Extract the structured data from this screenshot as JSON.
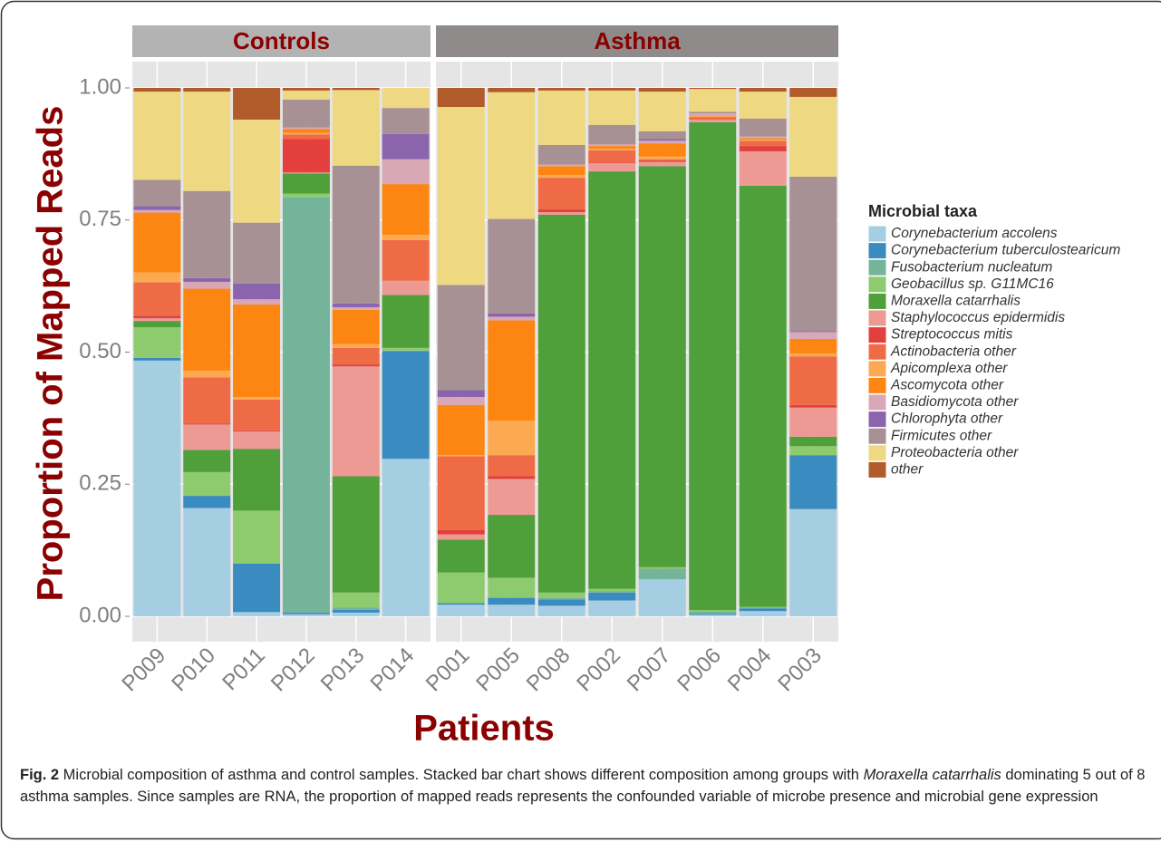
{
  "chart_data": {
    "type": "stacked_bar",
    "ylabel": "Proportion of Mapped Reads",
    "xlabel": "Patients",
    "legend_title": "Microbial taxa",
    "legend_position": "right",
    "groups": [
      {
        "label": "Controls",
        "categories": [
          "P009",
          "P010",
          "P011",
          "P012",
          "P013",
          "P014"
        ]
      },
      {
        "label": "Asthma",
        "categories": [
          "P001",
          "P005",
          "P008",
          "P002",
          "P007",
          "P006",
          "P004",
          "P003"
        ]
      }
    ],
    "ylim": [
      0,
      1
    ],
    "yticks": [
      {
        "value": 0,
        "label": "0.00"
      },
      {
        "value": 0.25,
        "label": "0.25"
      },
      {
        "value": 0.5,
        "label": "0.50"
      },
      {
        "value": 0.75,
        "label": "0.75"
      },
      {
        "value": 1,
        "label": "1.00"
      }
    ],
    "series": [
      {
        "name": "Corynebacterium accolens",
        "color": "#a6cee3",
        "values": [
          0.484,
          0.205,
          0.008,
          0.004,
          0.007,
          0.298,
          0.022,
          0.022,
          0.02,
          0.03,
          0.07,
          0.003,
          0.01,
          0.203
        ]
      },
      {
        "name": "Corynebacterium tuberculostearicum",
        "color": "#3a8bc0",
        "values": [
          0.005,
          0.023,
          0.092,
          0.003,
          0.005,
          0.204,
          0.003,
          0.013,
          0.012,
          0.015,
          0,
          0.002,
          0.005,
          0.102
        ]
      },
      {
        "name": "Fusobacterium nucleatum",
        "color": "#74b49b",
        "values": [
          0,
          0,
          0,
          0.786,
          0.005,
          0.001,
          0,
          0,
          0.003,
          0.003,
          0.02,
          0.005,
          0.002,
          0
        ]
      },
      {
        "name": "Geobacillus sp. G11MC16",
        "color": "#8dcb6e",
        "values": [
          0.058,
          0.045,
          0.1,
          0.007,
          0.028,
          0.005,
          0.058,
          0.038,
          0.01,
          0.004,
          0.003,
          0.002,
          0.001,
          0.017
        ]
      },
      {
        "name": "Moraxella catarrhalis",
        "color": "#4f9f3a",
        "values": [
          0.012,
          0.042,
          0.117,
          0.038,
          0.22,
          0.1,
          0.062,
          0.119,
          0.715,
          0.79,
          0.759,
          0.923,
          0.797,
          0.018
        ]
      },
      {
        "name": "Staphylococcus epidermidis",
        "color": "#ee9a94",
        "values": [
          0.005,
          0.048,
          0.033,
          0.002,
          0.208,
          0.027,
          0.01,
          0.068,
          0.005,
          0.016,
          0.008,
          0.005,
          0.065,
          0.055
        ]
      },
      {
        "name": "Streptococcus mitis",
        "color": "#e23f3d",
        "values": [
          0.005,
          0.002,
          0.002,
          0.063,
          0.003,
          0,
          0.008,
          0.005,
          0.005,
          0.002,
          0.002,
          0,
          0.01,
          0.005
        ]
      },
      {
        "name": "Actinobacteria other",
        "color": "#ef6b45",
        "values": [
          0.063,
          0.087,
          0.058,
          0.009,
          0.032,
          0.077,
          0.14,
          0.04,
          0.06,
          0.022,
          0.003,
          0.005,
          0.01,
          0.092
        ]
      },
      {
        "name": "Apicomplexa other",
        "color": "#fcaa52",
        "values": [
          0.019,
          0.013,
          0.005,
          0.003,
          0.007,
          0.01,
          0.002,
          0.065,
          0.005,
          0.003,
          0.005,
          0.002,
          0.002,
          0.005
        ]
      },
      {
        "name": "Ascomycota other",
        "color": "#fd8613",
        "values": [
          0.113,
          0.155,
          0.175,
          0.007,
          0.065,
          0.096,
          0.095,
          0.19,
          0.017,
          0.005,
          0.025,
          0.001,
          0.003,
          0.028
        ]
      },
      {
        "name": "Basidiomycota other",
        "color": "#d8a8b7",
        "values": [
          0.005,
          0.013,
          0.01,
          0.003,
          0.005,
          0.047,
          0.015,
          0.007,
          0.003,
          0.003,
          0.005,
          0.004,
          0.003,
          0.013
        ]
      },
      {
        "name": "Chlorophyta other",
        "color": "#8b64ae",
        "values": [
          0.007,
          0.007,
          0.03,
          0,
          0.007,
          0.048,
          0.013,
          0.006,
          0,
          0,
          0.003,
          0,
          0,
          0.002
        ]
      },
      {
        "name": "Firmicutes other",
        "color": "#a89194",
        "values": [
          0.05,
          0.165,
          0.115,
          0.053,
          0.261,
          0.049,
          0.199,
          0.179,
          0.037,
          0.037,
          0.015,
          0.003,
          0.034,
          0.292
        ]
      },
      {
        "name": "Proteobacteria other",
        "color": "#efd882",
        "values": [
          0.167,
          0.188,
          0.195,
          0.017,
          0.143,
          0.038,
          0.337,
          0.24,
          0.103,
          0.065,
          0.075,
          0.043,
          0.051,
          0.151
        ]
      },
      {
        "name": "other",
        "color": "#b15b2a",
        "values": [
          0.007,
          0.007,
          0.06,
          0.005,
          0.004,
          0,
          0.036,
          0.008,
          0.005,
          0.005,
          0.007,
          0.002,
          0.007,
          0.017
        ]
      }
    ],
    "caption": {
      "label": "Fig. 2",
      "text_1": " Microbial composition of asthma and control samples. Stacked bar chart shows different composition among groups with ",
      "italic": "Moraxella catarrhalis",
      "text_2": " dominating 5 out of 8 asthma samples. Since samples are RNA, the proportion of mapped reads represents the confounded variable of microbe presence and microbial gene expression"
    }
  }
}
